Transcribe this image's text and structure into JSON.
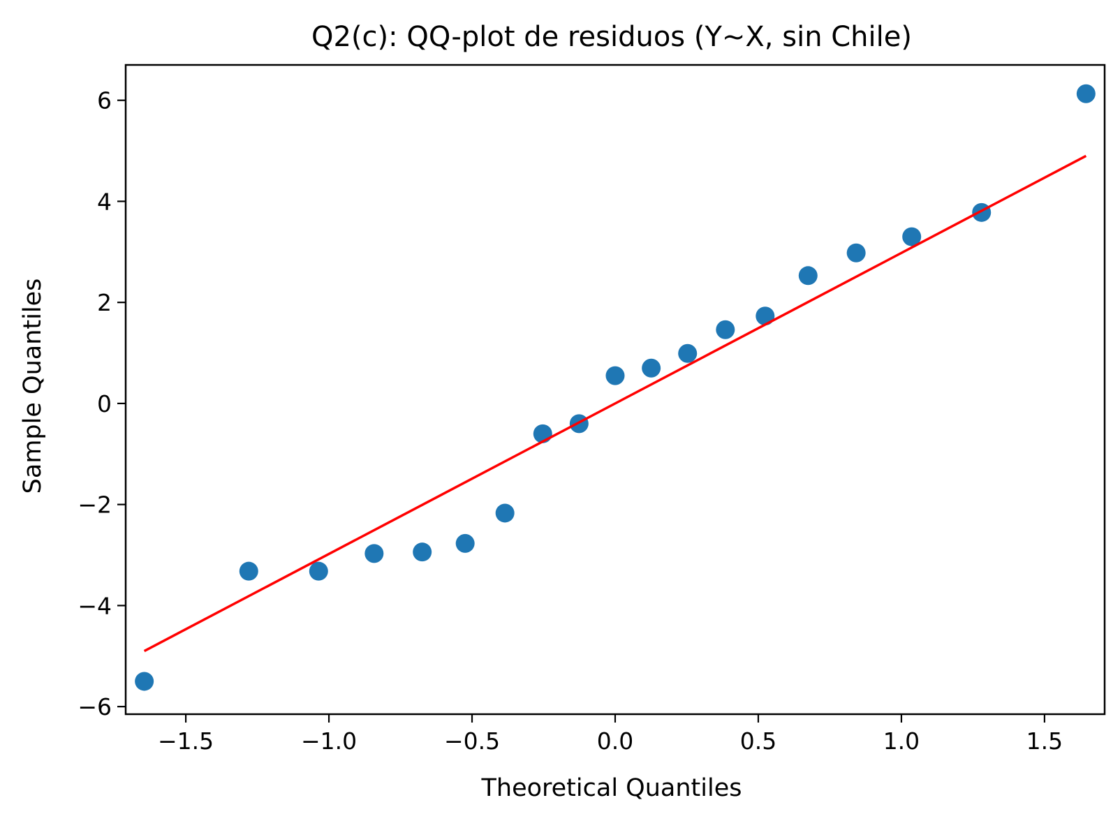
{
  "chart_data": {
    "type": "scatter",
    "title": "Q2(c): QQ-plot de residuos (Y~X, sin Chile)",
    "xlabel": "Theoretical Quantiles",
    "ylabel": "Sample Quantiles",
    "xlim": [
      -1.71,
      1.71
    ],
    "ylim": [
      -6.15,
      6.7
    ],
    "grid": false,
    "xticks": [
      {
        "value": -1.5,
        "label": "−1.5"
      },
      {
        "value": -1.0,
        "label": "−1.0"
      },
      {
        "value": -0.5,
        "label": "−0.5"
      },
      {
        "value": 0.0,
        "label": "0.0"
      },
      {
        "value": 0.5,
        "label": "0.5"
      },
      {
        "value": 1.0,
        "label": "1.0"
      },
      {
        "value": 1.5,
        "label": "1.5"
      }
    ],
    "yticks": [
      {
        "value": -6,
        "label": "−6"
      },
      {
        "value": -4,
        "label": "−4"
      },
      {
        "value": -2,
        "label": "−2"
      },
      {
        "value": 0,
        "label": "0"
      },
      {
        "value": 2,
        "label": "2"
      },
      {
        "value": 4,
        "label": "4"
      },
      {
        "value": 6,
        "label": "6"
      }
    ],
    "points": {
      "color": "#1f77b4",
      "x": [
        -1.645,
        -1.28,
        -1.036,
        -0.842,
        -0.674,
        -0.524,
        -0.385,
        -0.253,
        -0.126,
        0.0,
        0.126,
        0.253,
        0.385,
        0.524,
        0.674,
        0.842,
        1.036,
        1.28,
        1.645
      ],
      "y": [
        -5.5,
        -3.32,
        -3.32,
        -2.97,
        -2.94,
        -2.77,
        -2.17,
        -0.6,
        -0.4,
        0.55,
        0.7,
        0.99,
        1.46,
        1.73,
        2.53,
        2.98,
        3.3,
        3.78,
        6.13
      ]
    },
    "fit_line": {
      "color": "#ff0000",
      "x": [
        -1.645,
        1.645
      ],
      "y": [
        -4.9,
        4.9
      ]
    }
  }
}
